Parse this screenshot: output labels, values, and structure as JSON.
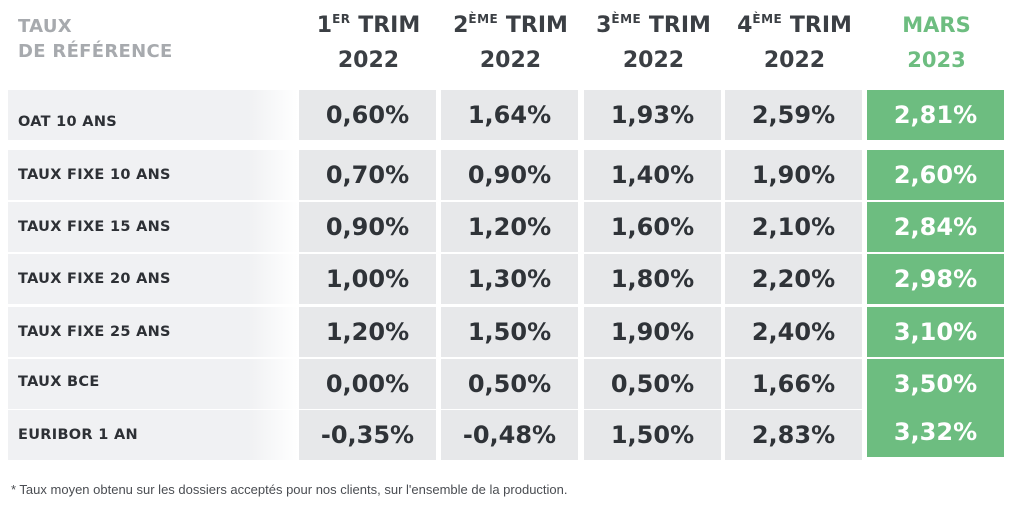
{
  "header": {
    "corner_line1": "TAUX",
    "corner_line2": "DE RÉFÉRENCE"
  },
  "columns": [
    {
      "num": "1",
      "sup": "ER",
      "label": " TRIM",
      "year": "2022"
    },
    {
      "num": "2",
      "sup": "ÈME",
      "label": " TRIM",
      "year": "2022"
    },
    {
      "num": "3",
      "sup": "ÈME",
      "label": " TRIM",
      "year": "2022"
    },
    {
      "num": "4",
      "sup": "ÈME",
      "label": " TRIM",
      "year": "2022"
    },
    {
      "num": "",
      "sup": "",
      "label": "MARS",
      "year": "2023"
    }
  ],
  "rows": [
    {
      "label": "OAT 10 ANS",
      "values": [
        "0,60%",
        "1,64%",
        "1,93%",
        "2,59%",
        "2,81%"
      ]
    },
    {
      "label": "TAUX FIXE 10 ANS",
      "values": [
        "0,70%",
        "0,90%",
        "1,40%",
        "1,90%",
        "2,60%"
      ]
    },
    {
      "label": "TAUX FIXE 15 ANS",
      "values": [
        "0,90%",
        "1,20%",
        "1,60%",
        "2,10%",
        "2,84%"
      ]
    },
    {
      "label": "TAUX FIXE 20 ANS",
      "values": [
        "1,00%",
        "1,30%",
        "1,80%",
        "2,20%",
        "2,98%"
      ]
    },
    {
      "label": "TAUX FIXE 25 ANS",
      "values": [
        "1,20%",
        "1,50%",
        "1,90%",
        "2,40%",
        "3,10%"
      ]
    },
    {
      "label": "TAUX BCE",
      "values": [
        "0,00%",
        "0,50%",
        "0,50%",
        "1,66%",
        "3,50%"
      ]
    },
    {
      "label": "EURIBOR 1 AN",
      "values": [
        "-0,35%",
        "-0,48%",
        "1,50%",
        "2,83%",
        "3,32%"
      ]
    }
  ],
  "footnote": "* Taux moyen obtenu sur les dossiers acceptés pour nos clients, sur l'ensemble de la production.",
  "colors": {
    "accent_green": "#6dbd80",
    "cell_grey": "#e7e8ea",
    "header_grey": "#a7aaae",
    "text_dark": "#2f3338"
  }
}
